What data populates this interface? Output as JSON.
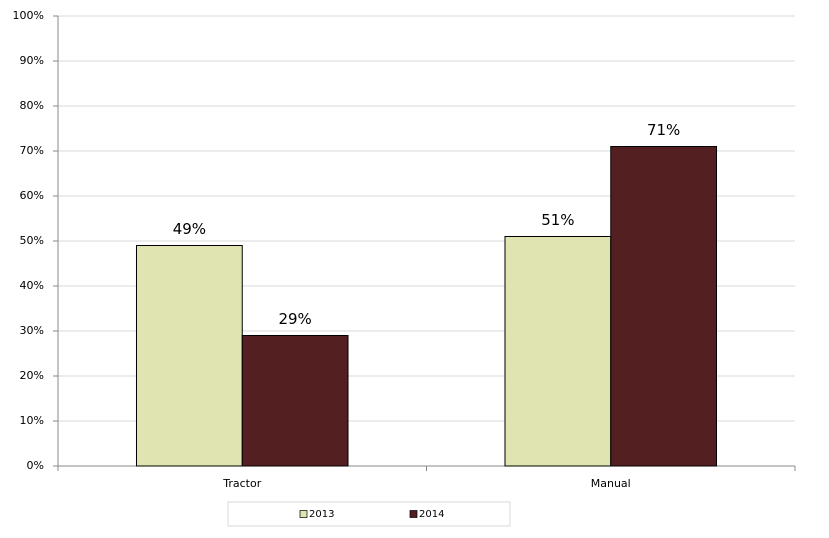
{
  "chart_data": {
    "type": "bar",
    "categories": [
      "Tractor",
      "Manual"
    ],
    "series": [
      {
        "name": "2013",
        "color": "#dfe4b0",
        "values": [
          49,
          51
        ],
        "value_labels": [
          "49%",
          "51%"
        ]
      },
      {
        "name": "2014",
        "color": "#541f21",
        "values": [
          29,
          71
        ],
        "value_labels": [
          "29%",
          "71%"
        ]
      }
    ],
    "ylim": [
      0,
      100
    ],
    "yticks": [
      {
        "value": 0,
        "label": "0%"
      },
      {
        "value": 10,
        "label": "10%"
      },
      {
        "value": 20,
        "label": "20%"
      },
      {
        "value": 30,
        "label": "30%"
      },
      {
        "value": 40,
        "label": "40%"
      },
      {
        "value": 50,
        "label": "50%"
      },
      {
        "value": 60,
        "label": "60%"
      },
      {
        "value": 70,
        "label": "70%"
      },
      {
        "value": 80,
        "label": "80%"
      },
      {
        "value": 90,
        "label": "90%"
      },
      {
        "value": 100,
        "label": "100%"
      }
    ],
    "grid": true,
    "legend": "bottom"
  }
}
